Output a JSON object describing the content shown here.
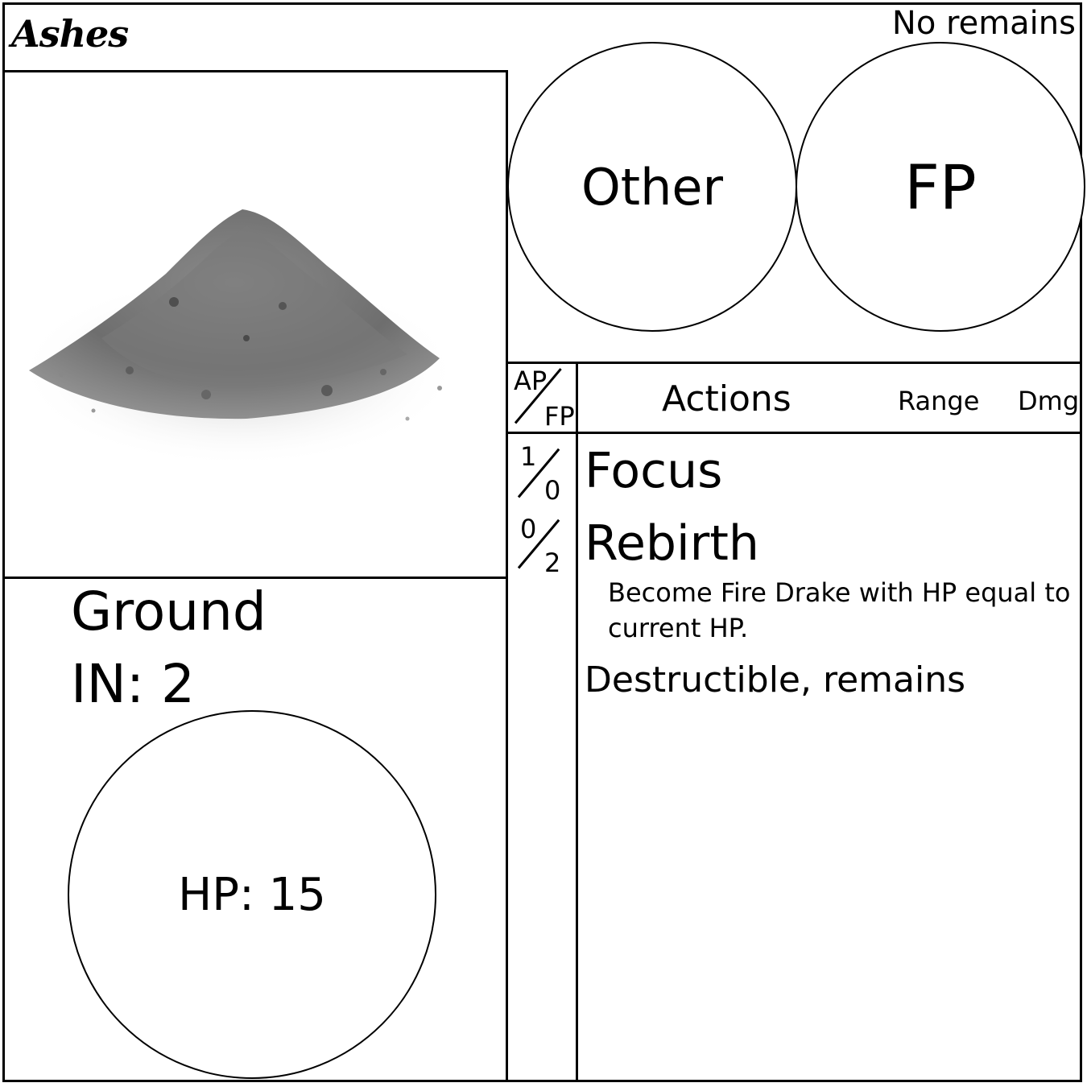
{
  "card": {
    "title": "Ashes",
    "remains_note": "No remains",
    "image_label": "pile-of-ash-image",
    "subtype": "Ground",
    "initiative": "IN: 2",
    "hp": "HP: 15",
    "other_label": "Other",
    "fp_label": "FP"
  },
  "actions_table": {
    "cost_header": {
      "top": "AP",
      "bottom": "FP"
    },
    "actions_header": "Actions",
    "range_header": "Range",
    "dmg_header": "Dmg",
    "rows": [
      {
        "ap": "1",
        "fp": "0",
        "name": "Focus"
      },
      {
        "ap": "0",
        "fp": "2",
        "name": "Rebirth",
        "description": "Become Fire Drake with HP equal to current HP."
      }
    ],
    "traits": "Destructible, remains"
  }
}
